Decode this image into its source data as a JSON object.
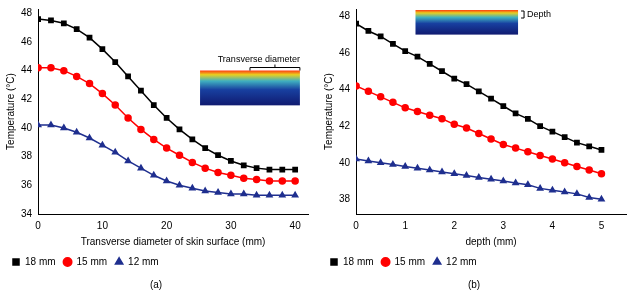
{
  "chart_data": [
    {
      "type": "line",
      "title": "(a)",
      "x_label": "Transverse diameter of skin surface (mm)",
      "y_label": "Temperature (°C)",
      "annotation": "Transverse diameter",
      "xlim": [
        0,
        42
      ],
      "xticks": [
        0,
        10,
        20,
        30,
        40
      ],
      "ylim": [
        34,
        48.3
      ],
      "yticks": [
        34,
        36,
        38,
        40,
        42,
        44,
        46,
        48
      ],
      "grid": false,
      "legend": "bottom",
      "x": [
        0,
        2,
        4,
        6,
        8,
        10,
        12,
        14,
        16,
        18,
        20,
        22,
        24,
        26,
        28,
        30,
        32,
        34,
        36,
        38,
        40
      ],
      "series": [
        {
          "name": "18 mm",
          "color": "#000000",
          "marker": "square",
          "line_style": "solid",
          "values": [
            47.6,
            47.5,
            47.3,
            46.9,
            46.3,
            45.5,
            44.6,
            43.6,
            42.6,
            41.6,
            40.7,
            39.9,
            39.2,
            38.6,
            38.1,
            37.7,
            37.4,
            37.2,
            37.1,
            37.1,
            37.1
          ]
        },
        {
          "name": "15 mm",
          "color": "#ff0000",
          "marker": "circle",
          "line_style": "solid",
          "values": [
            44.2,
            44.2,
            44.0,
            43.6,
            43.1,
            42.4,
            41.6,
            40.7,
            39.9,
            39.2,
            38.6,
            38.1,
            37.6,
            37.2,
            36.9,
            36.7,
            36.5,
            36.4,
            36.3,
            36.3,
            36.3
          ]
        },
        {
          "name": "12 mm",
          "color": "#1f2f8f",
          "marker": "triangle",
          "line_style": "solid",
          "values": [
            40.2,
            40.2,
            40.0,
            39.7,
            39.3,
            38.8,
            38.3,
            37.7,
            37.2,
            36.7,
            36.3,
            36.0,
            35.8,
            35.6,
            35.5,
            35.4,
            35.4,
            35.3,
            35.3,
            35.3,
            35.3
          ]
        }
      ]
    },
    {
      "type": "line",
      "title": "(b)",
      "x_label": "depth (mm)",
      "y_label": "Temperature (°C)",
      "annotation": "Depth",
      "xlim": [
        0,
        5.5
      ],
      "xticks": [
        0,
        1,
        2,
        3,
        4,
        5
      ],
      "ylim": [
        37.2,
        48.4
      ],
      "yticks": [
        38,
        40,
        42,
        44,
        46,
        48
      ],
      "grid": false,
      "legend": "bottom",
      "x": [
        0,
        0.25,
        0.5,
        0.75,
        1,
        1.25,
        1.5,
        1.75,
        2,
        2.25,
        2.5,
        2.75,
        3,
        3.25,
        3.5,
        3.75,
        4,
        4.25,
        4.5,
        4.75,
        5
      ],
      "series": [
        {
          "name": "18 mm",
          "color": "#000000",
          "marker": "square",
          "line_style": "solid",
          "values": [
            47.6,
            47.2,
            46.9,
            46.5,
            46.1,
            45.8,
            45.4,
            45.0,
            44.6,
            44.3,
            43.9,
            43.5,
            43.1,
            42.7,
            42.4,
            42.0,
            41.7,
            41.4,
            41.1,
            40.9,
            40.7
          ]
        },
        {
          "name": "15 mm",
          "color": "#ff0000",
          "marker": "circle",
          "line_style": "solid",
          "values": [
            44.2,
            43.9,
            43.6,
            43.3,
            43.0,
            42.8,
            42.6,
            42.4,
            42.1,
            41.9,
            41.6,
            41.3,
            41.0,
            40.8,
            40.6,
            40.4,
            40.2,
            40.0,
            39.8,
            39.6,
            39.4
          ]
        },
        {
          "name": "12 mm",
          "color": "#1f2f8f",
          "marker": "triangle",
          "line_style": "solid",
          "values": [
            40.2,
            40.1,
            40.0,
            39.9,
            39.8,
            39.7,
            39.6,
            39.5,
            39.4,
            39.3,
            39.2,
            39.1,
            39.0,
            38.9,
            38.8,
            38.6,
            38.5,
            38.4,
            38.3,
            38.1,
            38.0
          ]
        }
      ]
    }
  ]
}
